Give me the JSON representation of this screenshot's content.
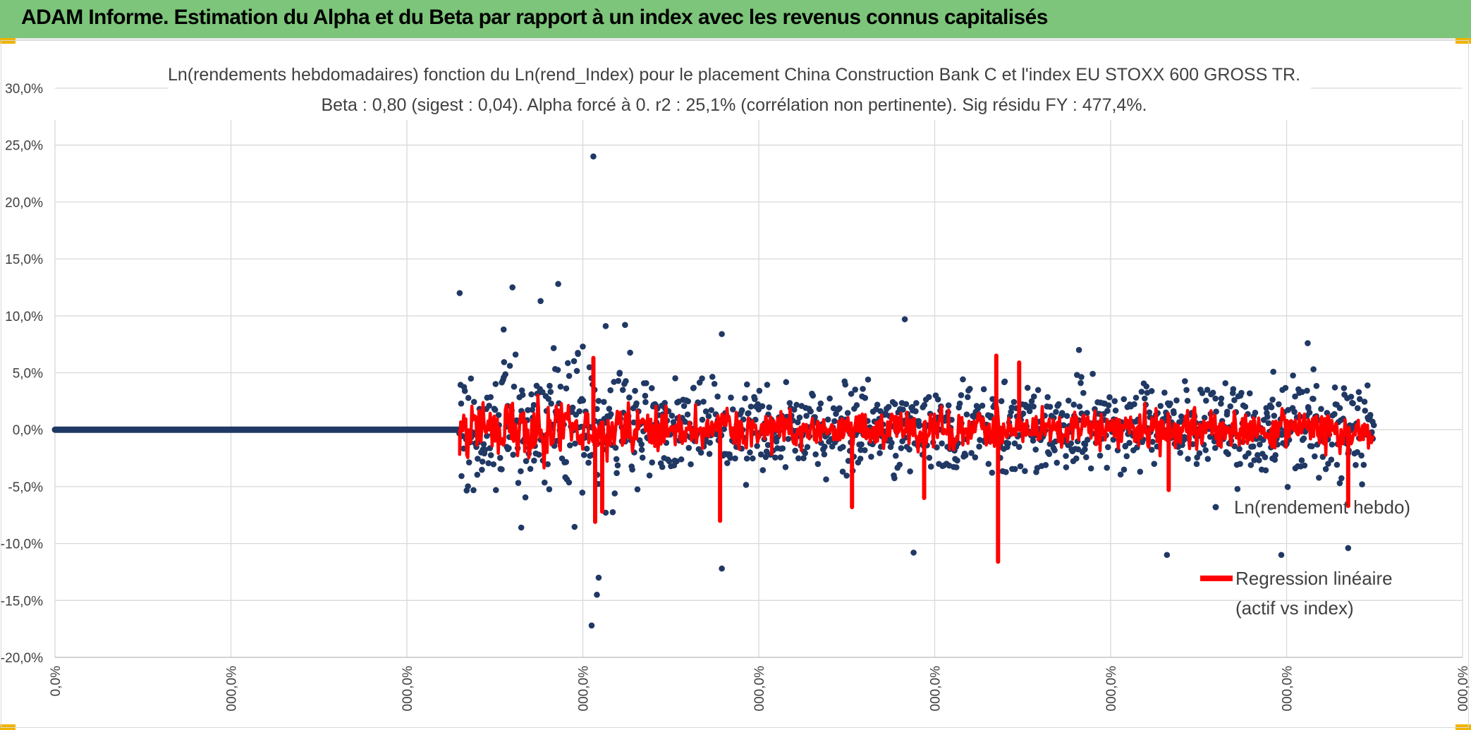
{
  "header": {
    "title": "ADAM Informe. Estimation du Alpha et du Beta par rapport à un index avec les revenus connus capitalisés"
  },
  "colors": {
    "banner": "#7cc57a",
    "scatter": "#203864",
    "regression": "#ff0000",
    "grid": "#d9d9d9",
    "accent": "#f0b400"
  },
  "chart_data": {
    "type": "scatter",
    "title_line1": "Ln(rendements hebdomadaires) fonction du Ln(rend_Index) pour le placement China Construction Bank C et l'index EU STOXX 600 GROSS TR.",
    "title_line2": "Beta : 0,80 (sigest : 0,04). Alpha forcé à 0. r2 : 25,1% (corrélation non pertinente). Sig résidu FY : 477,4%.",
    "y_ticks": [
      "30,0%",
      "25,0%",
      "20,0%",
      "15,0%",
      "10,0%",
      "5,0%",
      "0,0%",
      "-5,0%",
      "-10,0%",
      "-15,0%",
      "-20,0%"
    ],
    "ylim": [
      -20,
      30
    ],
    "x_ticks": [
      "0,0%",
      "000,0%",
      "000,0%",
      "000,0%",
      "000,0%",
      "000,0%",
      "000,0%",
      "000,0%",
      "000,0%"
    ],
    "xlim": [
      0,
      8
    ],
    "series": [
      {
        "name": "Ln(rendement hebdo)",
        "kind": "points"
      },
      {
        "name": "Regression linéaire\n(actif vs index)",
        "kind": "line"
      }
    ],
    "legend": {
      "entry1": "Ln(rendement hebdo)",
      "entry2_line1": "Regression linéaire",
      "entry2_line2": "(actif vs index)"
    },
    "flat_segment": {
      "x_start": 0,
      "x_end": 2.3,
      "y": 0
    },
    "cloud": {
      "x_start": 2.3,
      "x_end": 7.5,
      "typical_spread": 2.5
    },
    "outliers": [
      {
        "x": 3.06,
        "y": 24.0
      },
      {
        "x": 2.3,
        "y": 12.0
      },
      {
        "x": 2.6,
        "y": 12.5
      },
      {
        "x": 2.86,
        "y": 12.8
      },
      {
        "x": 2.76,
        "y": 11.3
      },
      {
        "x": 2.55,
        "y": 8.8
      },
      {
        "x": 3.05,
        "y": -17.2
      },
      {
        "x": 3.08,
        "y": -14.5
      },
      {
        "x": 3.09,
        "y": -13.0
      },
      {
        "x": 3.79,
        "y": -12.2
      },
      {
        "x": 3.13,
        "y": 9.1
      },
      {
        "x": 3.24,
        "y": 9.2
      },
      {
        "x": 4.83,
        "y": 9.7
      },
      {
        "x": 4.88,
        "y": -10.8
      },
      {
        "x": 6.32,
        "y": -11.0
      },
      {
        "x": 6.97,
        "y": -11.0
      },
      {
        "x": 7.12,
        "y": 7.6
      },
      {
        "x": 7.35,
        "y": -10.4
      },
      {
        "x": 2.65,
        "y": -8.6
      },
      {
        "x": 3.0,
        "y": 7.3
      },
      {
        "x": 3.79,
        "y": 8.4
      },
      {
        "x": 5.82,
        "y": 7.0
      }
    ],
    "regression_spikes": [
      {
        "x": 3.06,
        "y": 6.3
      },
      {
        "x": 3.07,
        "y": -8.1
      },
      {
        "x": 3.11,
        "y": -7.2
      },
      {
        "x": 3.78,
        "y": -8.0
      },
      {
        "x": 5.35,
        "y": 6.5
      },
      {
        "x": 5.36,
        "y": -11.6
      },
      {
        "x": 5.48,
        "y": 5.9
      },
      {
        "x": 4.53,
        "y": -6.8
      },
      {
        "x": 4.94,
        "y": -6.0
      },
      {
        "x": 6.33,
        "y": -5.3
      },
      {
        "x": 7.35,
        "y": -6.7
      }
    ]
  }
}
